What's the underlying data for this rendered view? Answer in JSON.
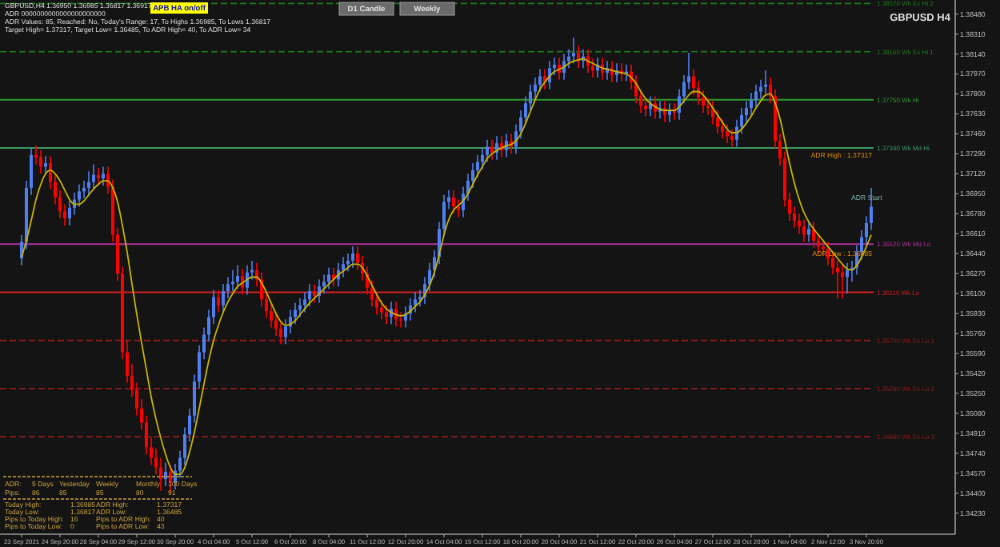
{
  "chart_data": {
    "type": "candlestick",
    "categories": [
      "23 Sep 2021",
      null,
      null,
      null,
      null,
      null,
      null,
      null,
      "24 Sep 20:00",
      null,
      null,
      null,
      null,
      null,
      null,
      null,
      "28 Sep 04:00",
      null,
      null,
      null,
      null,
      null,
      null,
      null,
      "29 Sep 12:00",
      null,
      null,
      null,
      null,
      null,
      null,
      null,
      "30 Sep 20:00",
      null,
      null,
      null,
      null,
      null,
      null,
      null,
      "4 Oct 04:00",
      null,
      null,
      null,
      null,
      null,
      null,
      null,
      "5 Oct 12:00",
      null,
      null,
      null,
      null,
      null,
      null,
      null,
      "6 Oct 20:00",
      null,
      null,
      null,
      null,
      null,
      null,
      null,
      "8 Oct 04:00",
      null,
      null,
      null,
      null,
      null,
      null,
      null,
      "11 Oct 12:00",
      null,
      null,
      null,
      null,
      null,
      null,
      null,
      "12 Oct 20:00",
      null,
      null,
      null,
      null,
      null,
      null,
      null,
      "14 Oct 04:00",
      null,
      null,
      null,
      null,
      null,
      null,
      null,
      "15 Oct 12:00",
      null,
      null,
      null,
      null,
      null,
      null,
      null,
      "18 Oct 20:00",
      null,
      null,
      null,
      null,
      null,
      null,
      null,
      "20 Oct 04:00",
      null,
      null,
      null,
      null,
      null,
      null,
      null,
      "21 Oct 12:00",
      null,
      null,
      null,
      null,
      null,
      null,
      null,
      "22 Oct 20:00",
      null,
      null,
      null,
      null,
      null,
      null,
      null,
      "26 Oct 04:00",
      null,
      null,
      null,
      null,
      null,
      null,
      null,
      "27 Oct 12:00",
      null,
      null,
      null,
      null,
      null,
      null,
      null,
      "28 Oct 20:00",
      null,
      null,
      null,
      null,
      null,
      null,
      null,
      "1 Nov 04:00",
      null,
      null,
      null,
      null,
      null,
      null,
      null,
      "2 Nov 12:00",
      null,
      null,
      null,
      null,
      null,
      null,
      null,
      "3 Nov 20:00",
      null
    ],
    "ohlc": [
      [
        1.364,
        1.366,
        1.3634,
        1.3654
      ],
      [
        1.3654,
        1.3706,
        1.3648,
        1.37
      ],
      [
        1.37,
        1.3734,
        1.3694,
        1.3728
      ],
      [
        1.3728,
        1.3736,
        1.372,
        1.3726
      ],
      [
        1.3726,
        1.3732,
        1.3712,
        1.3718
      ],
      [
        1.3718,
        1.3727,
        1.3712,
        1.3721
      ],
      [
        1.3721,
        1.3727,
        1.3699,
        1.3705
      ],
      [
        1.3705,
        1.3711,
        1.3686,
        1.3692
      ],
      [
        1.3692,
        1.3698,
        1.3674,
        1.368
      ],
      [
        1.368,
        1.3686,
        1.3668,
        1.3674
      ],
      [
        1.3674,
        1.3689,
        1.3668,
        1.3683
      ],
      [
        1.3683,
        1.3696,
        1.3677,
        1.369
      ],
      [
        1.369,
        1.3703,
        1.3684,
        1.3697
      ],
      [
        1.3697,
        1.3706,
        1.3691,
        1.37
      ],
      [
        1.37,
        1.3714,
        1.3694,
        1.3705
      ],
      [
        1.3705,
        1.372,
        1.3699,
        1.3711
      ],
      [
        1.3711,
        1.3717,
        1.3702,
        1.3708
      ],
      [
        1.3708,
        1.3718,
        1.3702,
        1.3712
      ],
      [
        1.3712,
        1.3718,
        1.3695,
        1.3701
      ],
      [
        1.3701,
        1.3707,
        1.3654,
        1.366
      ],
      [
        1.366,
        1.3666,
        1.3621,
        1.3627
      ],
      [
        1.3627,
        1.3633,
        1.3554,
        1.356
      ],
      [
        1.356,
        1.357,
        1.3534,
        1.354
      ],
      [
        1.354,
        1.355,
        1.3522,
        1.3528
      ],
      [
        1.3528,
        1.3534,
        1.3506,
        1.3512
      ],
      [
        1.3512,
        1.352,
        1.3494,
        1.35
      ],
      [
        1.35,
        1.3506,
        1.3473,
        1.3479
      ],
      [
        1.3479,
        1.3488,
        1.3464,
        1.347
      ],
      [
        1.347,
        1.3478,
        1.3456,
        1.3462
      ],
      [
        1.3462,
        1.347,
        1.3442,
        1.3452
      ],
      [
        1.3452,
        1.3466,
        1.3446,
        1.3458
      ],
      [
        1.3458,
        1.3464,
        1.344,
        1.3449
      ],
      [
        1.3449,
        1.3465,
        1.3443,
        1.3459
      ],
      [
        1.3459,
        1.3476,
        1.3453,
        1.347
      ],
      [
        1.347,
        1.3496,
        1.3464,
        1.349
      ],
      [
        1.349,
        1.3512,
        1.3484,
        1.3506
      ],
      [
        1.3506,
        1.3541,
        1.35,
        1.3535
      ],
      [
        1.3535,
        1.3566,
        1.3529,
        1.356
      ],
      [
        1.356,
        1.3581,
        1.3554,
        1.3575
      ],
      [
        1.3575,
        1.3596,
        1.3569,
        1.359
      ],
      [
        1.359,
        1.3613,
        1.3584,
        1.3607
      ],
      [
        1.3607,
        1.3613,
        1.3594,
        1.36
      ],
      [
        1.36,
        1.3618,
        1.3594,
        1.3612
      ],
      [
        1.3612,
        1.3624,
        1.3606,
        1.3618
      ],
      [
        1.3618,
        1.363,
        1.3612,
        1.362
      ],
      [
        1.362,
        1.3634,
        1.3614,
        1.3625
      ],
      [
        1.3625,
        1.3631,
        1.3609,
        1.3615
      ],
      [
        1.3615,
        1.3634,
        1.3609,
        1.3628
      ],
      [
        1.3628,
        1.3638,
        1.3622,
        1.363
      ],
      [
        1.363,
        1.3636,
        1.3616,
        1.3622
      ],
      [
        1.3622,
        1.3628,
        1.3599,
        1.3605
      ],
      [
        1.3605,
        1.3611,
        1.3589,
        1.3595
      ],
      [
        1.3595,
        1.3601,
        1.3581,
        1.3587
      ],
      [
        1.3587,
        1.3593,
        1.3574,
        1.358
      ],
      [
        1.358,
        1.3586,
        1.3567,
        1.3573
      ],
      [
        1.3573,
        1.3588,
        1.3567,
        1.3582
      ],
      [
        1.3582,
        1.3596,
        1.3576,
        1.359
      ],
      [
        1.359,
        1.3602,
        1.3584,
        1.3596
      ],
      [
        1.3596,
        1.3606,
        1.359,
        1.36
      ],
      [
        1.36,
        1.3611,
        1.3594,
        1.3605
      ],
      [
        1.3605,
        1.3618,
        1.3599,
        1.3612
      ],
      [
        1.3612,
        1.3618,
        1.3602,
        1.3608
      ],
      [
        1.3608,
        1.3622,
        1.3602,
        1.3616
      ],
      [
        1.3616,
        1.3626,
        1.361,
        1.362
      ],
      [
        1.362,
        1.3632,
        1.3614,
        1.3626
      ],
      [
        1.3626,
        1.3632,
        1.3616,
        1.3622
      ],
      [
        1.3622,
        1.3636,
        1.3616,
        1.363
      ],
      [
        1.363,
        1.3641,
        1.3624,
        1.3635
      ],
      [
        1.3635,
        1.3644,
        1.3629,
        1.3638
      ],
      [
        1.3638,
        1.365,
        1.3632,
        1.3644
      ],
      [
        1.3644,
        1.365,
        1.363,
        1.3636
      ],
      [
        1.3636,
        1.3642,
        1.3621,
        1.3627
      ],
      [
        1.3627,
        1.3633,
        1.3609,
        1.3615
      ],
      [
        1.3615,
        1.3621,
        1.3599,
        1.3605
      ],
      [
        1.3605,
        1.3611,
        1.3592,
        1.3598
      ],
      [
        1.3598,
        1.3604,
        1.3588,
        1.3594
      ],
      [
        1.3594,
        1.36,
        1.3584,
        1.359
      ],
      [
        1.359,
        1.3603,
        1.3584,
        1.3597
      ],
      [
        1.3597,
        1.3603,
        1.3582,
        1.3588
      ],
      [
        1.3588,
        1.3594,
        1.3581,
        1.3587
      ],
      [
        1.3587,
        1.3599,
        1.3581,
        1.3593
      ],
      [
        1.3593,
        1.3606,
        1.3587,
        1.36
      ],
      [
        1.36,
        1.3611,
        1.3594,
        1.3605
      ],
      [
        1.3605,
        1.3613,
        1.3599,
        1.3607
      ],
      [
        1.3607,
        1.3624,
        1.3601,
        1.3618
      ],
      [
        1.3618,
        1.3636,
        1.3612,
        1.363
      ],
      [
        1.363,
        1.3647,
        1.3624,
        1.3641
      ],
      [
        1.3641,
        1.3671,
        1.3635,
        1.3665
      ],
      [
        1.3665,
        1.3694,
        1.3659,
        1.3688
      ],
      [
        1.3688,
        1.3698,
        1.3682,
        1.3692
      ],
      [
        1.3692,
        1.3698,
        1.3678,
        1.3684
      ],
      [
        1.3684,
        1.369,
        1.3675,
        1.3681
      ],
      [
        1.3681,
        1.3701,
        1.3675,
        1.3695
      ],
      [
        1.3695,
        1.3712,
        1.3689,
        1.3706
      ],
      [
        1.3706,
        1.3721,
        1.37,
        1.3715
      ],
      [
        1.3715,
        1.3728,
        1.3709,
        1.3722
      ],
      [
        1.3722,
        1.3734,
        1.3716,
        1.3728
      ],
      [
        1.3728,
        1.3741,
        1.3722,
        1.3735
      ],
      [
        1.3735,
        1.3741,
        1.3724,
        1.373
      ],
      [
        1.373,
        1.3744,
        1.3724,
        1.3738
      ],
      [
        1.3738,
        1.3744,
        1.3726,
        1.3732
      ],
      [
        1.3732,
        1.3746,
        1.3726,
        1.374
      ],
      [
        1.374,
        1.3746,
        1.3729,
        1.3735
      ],
      [
        1.3735,
        1.3754,
        1.3729,
        1.3748
      ],
      [
        1.3748,
        1.3766,
        1.3742,
        1.376
      ],
      [
        1.376,
        1.3778,
        1.3754,
        1.3772
      ],
      [
        1.3772,
        1.3788,
        1.3766,
        1.3782
      ],
      [
        1.3782,
        1.3794,
        1.3776,
        1.3788
      ],
      [
        1.3788,
        1.3801,
        1.3782,
        1.3795
      ],
      [
        1.3795,
        1.3801,
        1.3784,
        1.379
      ],
      [
        1.379,
        1.3808,
        1.3784,
        1.3802
      ],
      [
        1.3802,
        1.3811,
        1.3796,
        1.3805
      ],
      [
        1.3805,
        1.3811,
        1.3792,
        1.3798
      ],
      [
        1.3798,
        1.3814,
        1.3792,
        1.3808
      ],
      [
        1.3808,
        1.3818,
        1.3802,
        1.3812
      ],
      [
        1.3812,
        1.3828,
        1.3806,
        1.3815
      ],
      [
        1.3815,
        1.3821,
        1.3802,
        1.3808
      ],
      [
        1.3808,
        1.3818,
        1.3802,
        1.3812
      ],
      [
        1.3812,
        1.3818,
        1.3798,
        1.3804
      ],
      [
        1.3804,
        1.381,
        1.3794,
        1.38
      ],
      [
        1.38,
        1.3811,
        1.3794,
        1.3805
      ],
      [
        1.3805,
        1.3811,
        1.3792,
        1.3798
      ],
      [
        1.3798,
        1.3808,
        1.3792,
        1.3802
      ],
      [
        1.3802,
        1.3808,
        1.379,
        1.3796
      ],
      [
        1.3796,
        1.3806,
        1.379,
        1.38
      ],
      [
        1.38,
        1.3806,
        1.3791,
        1.3797
      ],
      [
        1.3797,
        1.3805,
        1.3791,
        1.3799
      ],
      [
        1.3799,
        1.3805,
        1.3784,
        1.379
      ],
      [
        1.379,
        1.3796,
        1.3772,
        1.3778
      ],
      [
        1.3778,
        1.3784,
        1.3764,
        1.377
      ],
      [
        1.377,
        1.3776,
        1.3761,
        1.3767
      ],
      [
        1.3767,
        1.3778,
        1.3761,
        1.3772
      ],
      [
        1.3772,
        1.3778,
        1.3759,
        1.3765
      ],
      [
        1.3765,
        1.3774,
        1.3759,
        1.3768
      ],
      [
        1.3768,
        1.3774,
        1.3756,
        1.3762
      ],
      [
        1.3762,
        1.3772,
        1.3756,
        1.3766
      ],
      [
        1.3766,
        1.3772,
        1.3758,
        1.3764
      ],
      [
        1.3764,
        1.3784,
        1.3758,
        1.3778
      ],
      [
        1.3778,
        1.3796,
        1.3772,
        1.379
      ],
      [
        1.379,
        1.3815,
        1.3784,
        1.3795
      ],
      [
        1.3795,
        1.3801,
        1.3779,
        1.3785
      ],
      [
        1.3785,
        1.3791,
        1.3771,
        1.3777
      ],
      [
        1.3777,
        1.3783,
        1.3764,
        1.377
      ],
      [
        1.377,
        1.3776,
        1.3762,
        1.3768
      ],
      [
        1.3768,
        1.3774,
        1.3754,
        1.376
      ],
      [
        1.376,
        1.3766,
        1.3746,
        1.3752
      ],
      [
        1.3752,
        1.3758,
        1.3742,
        1.3748
      ],
      [
        1.3748,
        1.3754,
        1.3738,
        1.3744
      ],
      [
        1.3744,
        1.375,
        1.3735,
        1.3741
      ],
      [
        1.3741,
        1.3758,
        1.3735,
        1.3752
      ],
      [
        1.3752,
        1.3768,
        1.3746,
        1.3762
      ],
      [
        1.3762,
        1.3774,
        1.3756,
        1.3768
      ],
      [
        1.3768,
        1.3781,
        1.3762,
        1.3775
      ],
      [
        1.3775,
        1.3788,
        1.3769,
        1.3782
      ],
      [
        1.3782,
        1.3792,
        1.3776,
        1.3786
      ],
      [
        1.3786,
        1.38,
        1.378,
        1.3788
      ],
      [
        1.3788,
        1.3794,
        1.3772,
        1.3778
      ],
      [
        1.3778,
        1.3784,
        1.3734,
        1.374
      ],
      [
        1.374,
        1.3746,
        1.3719,
        1.3725
      ],
      [
        1.3725,
        1.3731,
        1.3684,
        1.369
      ],
      [
        1.369,
        1.3696,
        1.3672,
        1.3678
      ],
      [
        1.3678,
        1.3684,
        1.3666,
        1.3672
      ],
      [
        1.3672,
        1.3678,
        1.3661,
        1.3667
      ],
      [
        1.3667,
        1.3673,
        1.3654,
        1.366
      ],
      [
        1.366,
        1.3671,
        1.3654,
        1.3665
      ],
      [
        1.3665,
        1.3671,
        1.3649,
        1.3655
      ],
      [
        1.3655,
        1.3661,
        1.3644,
        1.365
      ],
      [
        1.365,
        1.3656,
        1.3642,
        1.3648
      ],
      [
        1.3648,
        1.3654,
        1.3634,
        1.364
      ],
      [
        1.364,
        1.3646,
        1.3626,
        1.3632
      ],
      [
        1.3632,
        1.3638,
        1.3606,
        1.3628
      ],
      [
        1.3628,
        1.3634,
        1.3606,
        1.3624
      ],
      [
        1.3624,
        1.3636,
        1.361,
        1.363
      ],
      [
        1.363,
        1.3638,
        1.362,
        1.3632
      ],
      [
        1.3632,
        1.3651,
        1.3626,
        1.3645
      ],
      [
        1.3645,
        1.3664,
        1.3639,
        1.3658
      ],
      [
        1.3658,
        1.3676,
        1.3652,
        1.367
      ],
      [
        1.367,
        1.37,
        1.3664,
        1.3684
      ]
    ],
    "colors": [
      "#4f7ff0",
      "#4f7ff0",
      "#4f7ff0",
      "#ff0000",
      "#ff0000",
      "#4f7ff0",
      "#ff0000",
      "#ff0000",
      "#ff0000",
      "#ff0000",
      "#4f7ff0",
      "#4f7ff0",
      "#4f7ff0",
      "#4f7ff0",
      "#4f7ff0",
      "#4f7ff0",
      "#ff0000",
      "#4f7ff0",
      "#ff0000",
      "#ff0000",
      "#ff0000",
      "#ff0000",
      "#ff0000",
      "#ff0000",
      "#ff0000",
      "#ff0000",
      "#ff0000",
      "#ff0000",
      "#ff0000",
      "#ff0000",
      "#4f7ff0",
      "#ff0000",
      "#4f7ff0",
      "#4f7ff0",
      "#4f7ff0",
      "#4f7ff0",
      "#4f7ff0",
      "#4f7ff0",
      "#4f7ff0",
      "#4f7ff0",
      "#4f7ff0",
      "#ff0000",
      "#4f7ff0",
      "#4f7ff0",
      "#4f7ff0",
      "#4f7ff0",
      "#ff0000",
      "#4f7ff0",
      "#4f7ff0",
      "#ff0000",
      "#ff0000",
      "#ff0000",
      "#ff0000",
      "#ff0000",
      "#ff0000",
      "#4f7ff0",
      "#4f7ff0",
      "#4f7ff0",
      "#4f7ff0",
      "#4f7ff0",
      "#4f7ff0",
      "#ff0000",
      "#4f7ff0",
      "#4f7ff0",
      "#4f7ff0",
      "#ff0000",
      "#4f7ff0",
      "#4f7ff0",
      "#4f7ff0",
      "#4f7ff0",
      "#ff0000",
      "#ff0000",
      "#ff0000",
      "#ff0000",
      "#ff0000",
      "#ff0000",
      "#ff0000",
      "#4f7ff0",
      "#ff0000",
      "#ff0000",
      "#4f7ff0",
      "#4f7ff0",
      "#4f7ff0",
      "#4f7ff0",
      "#4f7ff0",
      "#4f7ff0",
      "#4f7ff0",
      "#4f7ff0",
      "#4f7ff0",
      "#4f7ff0",
      "#ff0000",
      "#ff0000",
      "#4f7ff0",
      "#4f7ff0",
      "#4f7ff0",
      "#4f7ff0",
      "#4f7ff0",
      "#4f7ff0",
      "#ff0000",
      "#4f7ff0",
      "#ff0000",
      "#4f7ff0",
      "#ff0000",
      "#4f7ff0",
      "#4f7ff0",
      "#4f7ff0",
      "#4f7ff0",
      "#4f7ff0",
      "#4f7ff0",
      "#ff0000",
      "#4f7ff0",
      "#4f7ff0",
      "#ff0000",
      "#4f7ff0",
      "#4f7ff0",
      "#4f7ff0",
      "#ff0000",
      "#4f7ff0",
      "#ff0000",
      "#ff0000",
      "#4f7ff0",
      "#ff0000",
      "#4f7ff0",
      "#ff0000",
      "#4f7ff0",
      "#ff0000",
      "#4f7ff0",
      "#ff0000",
      "#ff0000",
      "#ff0000",
      "#ff0000",
      "#4f7ff0",
      "#ff0000",
      "#4f7ff0",
      "#ff0000",
      "#4f7ff0",
      "#ff0000",
      "#4f7ff0",
      "#4f7ff0",
      "#4f7ff0",
      "#ff0000",
      "#ff0000",
      "#ff0000",
      "#ff0000",
      "#ff0000",
      "#ff0000",
      "#ff0000",
      "#ff0000",
      "#ff0000",
      "#4f7ff0",
      "#4f7ff0",
      "#4f7ff0",
      "#4f7ff0",
      "#4f7ff0",
      "#4f7ff0",
      "#4f7ff0",
      "#ff0000",
      "#ff0000",
      "#ff0000",
      "#ff0000",
      "#ff0000",
      "#ff0000",
      "#ff0000",
      "#ff0000",
      "#4f7ff0",
      "#ff0000",
      "#ff0000",
      "#ff0000",
      "#ff0000",
      "#ff0000",
      "#ff0000",
      "#ff0000",
      "#4f7ff0",
      "#4f7ff0",
      "#4f7ff0",
      "#4f7ff0",
      "#4f7ff0",
      "#4f7ff0"
    ],
    "series": [
      {
        "type": "line",
        "color": "#c8b400",
        "values": [
          1.3641,
          1.3655,
          1.3672,
          1.369,
          1.3703,
          1.3712,
          1.3715,
          1.3712,
          1.3706,
          1.3698,
          1.369,
          1.3686,
          1.3686,
          1.3689,
          1.3694,
          1.3699,
          1.3703,
          1.3706,
          1.3706,
          1.37,
          1.3688,
          1.3668,
          1.3645,
          1.3618,
          1.3592,
          1.3568,
          1.3545,
          1.3522,
          1.3503,
          1.3487,
          1.3473,
          1.3462,
          1.3456,
          1.3456,
          1.3462,
          1.3475,
          1.3492,
          1.3512,
          1.3533,
          1.3553,
          1.357,
          1.3583,
          1.3594,
          1.3603,
          1.361,
          1.3616,
          1.3619,
          1.3622,
          1.3624,
          1.3624,
          1.3619,
          1.3611,
          1.3602,
          1.3593,
          1.3586,
          1.3583,
          1.3584,
          1.3587,
          1.3592,
          1.3597,
          1.3602,
          1.3606,
          1.361,
          1.3614,
          1.3618,
          1.3622,
          1.3626,
          1.3629,
          1.3632,
          1.3635,
          1.3635,
          1.3632,
          1.3625,
          1.3617,
          1.3609,
          1.3602,
          1.3597,
          1.3594,
          1.3592,
          1.3591,
          1.3592,
          1.3595,
          1.3599,
          1.3603,
          1.3609,
          1.3617,
          1.3628,
          1.3643,
          1.366,
          1.3673,
          1.3681,
          1.3685,
          1.3689,
          1.3695,
          1.3703,
          1.3711,
          1.3718,
          1.3725,
          1.3729,
          1.3732,
          1.3734,
          1.3736,
          1.3737,
          1.374,
          1.3746,
          1.3755,
          1.3765,
          1.3775,
          1.3784,
          1.379,
          1.3795,
          1.3799,
          1.3801,
          1.3803,
          1.3806,
          1.3808,
          1.3809,
          1.381,
          1.3808,
          1.3806,
          1.3804,
          1.3802,
          1.3801,
          1.38,
          1.3799,
          1.3798,
          1.3797,
          1.3794,
          1.3789,
          1.3782,
          1.3776,
          1.3772,
          1.3769,
          1.3767,
          1.3766,
          1.3766,
          1.3766,
          1.3769,
          1.3774,
          1.3779,
          1.3782,
          1.3782,
          1.3779,
          1.3774,
          1.3768,
          1.3762,
          1.3756,
          1.375,
          1.3747,
          1.3747,
          1.375,
          1.3755,
          1.3761,
          1.3768,
          1.3774,
          1.3779,
          1.378,
          1.3772,
          1.3759,
          1.374,
          1.3721,
          1.3704,
          1.369,
          1.3679,
          1.3671,
          1.3665,
          1.366,
          1.3655,
          1.365,
          1.3645,
          1.364,
          1.3635,
          1.3631,
          1.363,
          1.3634,
          1.3641,
          1.365,
          1.366
        ]
      }
    ],
    "ylim": [
      1.3405,
      1.386
    ],
    "yticks": [
      {
        "value": 1.3423,
        "label": "1.34230"
      },
      {
        "value": 1.344,
        "label": "1.34400"
      },
      {
        "value": 1.3457,
        "label": "1.34570"
      },
      {
        "value": 1.3474,
        "label": "1.34740"
      },
      {
        "value": 1.3491,
        "label": "1.34910"
      },
      {
        "value": 1.3508,
        "label": "1.35080"
      },
      {
        "value": 1.3525,
        "label": "1.35250"
      },
      {
        "value": 1.3542,
        "label": "1.35420"
      },
      {
        "value": 1.3559,
        "label": "1.35590"
      },
      {
        "value": 1.3576,
        "label": "1.35760"
      },
      {
        "value": 1.3593,
        "label": "1.35930"
      },
      {
        "value": 1.361,
        "label": "1.36100"
      },
      {
        "value": 1.3627,
        "label": "1.36270"
      },
      {
        "value": 1.3644,
        "label": "1.36440"
      },
      {
        "value": 1.3661,
        "label": "1.36610"
      },
      {
        "value": 1.3678,
        "label": "1.36780"
      },
      {
        "value": 1.3695,
        "label": "1.36950"
      },
      {
        "value": 1.3712,
        "label": "1.37120"
      },
      {
        "value": 1.3729,
        "label": "1.37290"
      },
      {
        "value": 1.3746,
        "label": "1.37460"
      },
      {
        "value": 1.3763,
        "label": "1.37630"
      },
      {
        "value": 1.378,
        "label": "1.37800"
      },
      {
        "value": 1.3797,
        "label": "1.37970"
      },
      {
        "value": 1.3814,
        "label": "1.38140"
      },
      {
        "value": 1.3831,
        "label": "1.38310"
      },
      {
        "value": 1.3848,
        "label": "1.38480"
      }
    ],
    "ref_lines": [
      {
        "axis": "y",
        "value": 1.3857,
        "label": "1.38570 Wk Ex Hi 2",
        "color": "#1e7a1e",
        "line_style": "dashed"
      },
      {
        "axis": "y",
        "value": 1.3816,
        "label": "1.38160 Wk Ex Hi 1",
        "color": "#1e7a1e",
        "line_style": "dashed"
      },
      {
        "axis": "y",
        "value": 1.3775,
        "label": "1.37750 Wk Hi",
        "color": "#2e9a2e",
        "line_style": "solid"
      },
      {
        "axis": "y",
        "value": 1.3734,
        "label": "1.37340 Wk Md Hi",
        "color": "#3c9a64",
        "line_style": "solid"
      },
      {
        "axis": "y",
        "value": 1.3652,
        "label": "1.36520 Wk Md Lo",
        "color": "#b0309a",
        "line_style": "solid"
      },
      {
        "axis": "y",
        "value": 1.3611,
        "label": "1.36110 Wk Lo",
        "color": "#d02020",
        "line_style": "solid"
      },
      {
        "axis": "y",
        "value": 1.357,
        "label": "1.35700 Wk Ex Lo 1",
        "color": "#8b1a1a",
        "line_style": "dashed"
      },
      {
        "axis": "y",
        "value": 1.3529,
        "label": "1.35290 Wk Ex Lo 2",
        "color": "#8b1a1a",
        "line_style": "dashed"
      },
      {
        "axis": "y",
        "value": 1.3488,
        "label": "1.34880 Wk Ex Lo 3",
        "color": "#8b1a1a",
        "line_style": "dashed"
      }
    ],
    "annotations": [
      "GBPUSD,H4 1.36950 1.36985 1.36817 1.36917",
      "ADR 0000000000000000000000",
      "ADR Values: 85, Reached: No, Today's Range: 17, To Highs 1.36985, To Lows 1.36817",
      "Target High= 1.37317, Target Low= 1.36485, To ADR High= 40, To ADR Low= 34",
      "APB HA on/off",
      "D1 Candle",
      "Weekly",
      "GBPUSD H4",
      {
        "text": "ADR High : 1.37317",
        "y": 1.37317
      },
      {
        "text": "ADR Low : 1.36485",
        "y": 1.36485
      },
      "ADR Start",
      "ADR:",
      "5 Days",
      "Yesterday",
      "Weekly",
      "Monthly",
      "100 Days",
      "Pips:",
      "86",
      "85",
      "85",
      "80",
      "91",
      "Today High:",
      "1.36985",
      "ADR High:",
      "1.37317",
      "Today Low:",
      "1.36817",
      "ADR Low:",
      "1.36485",
      "Pips to Today High:",
      "16",
      "Pips to ADR High:",
      "40",
      "Pips to Today Low:",
      "0",
      "Pips to ADR Low:",
      "43"
    ]
  }
}
